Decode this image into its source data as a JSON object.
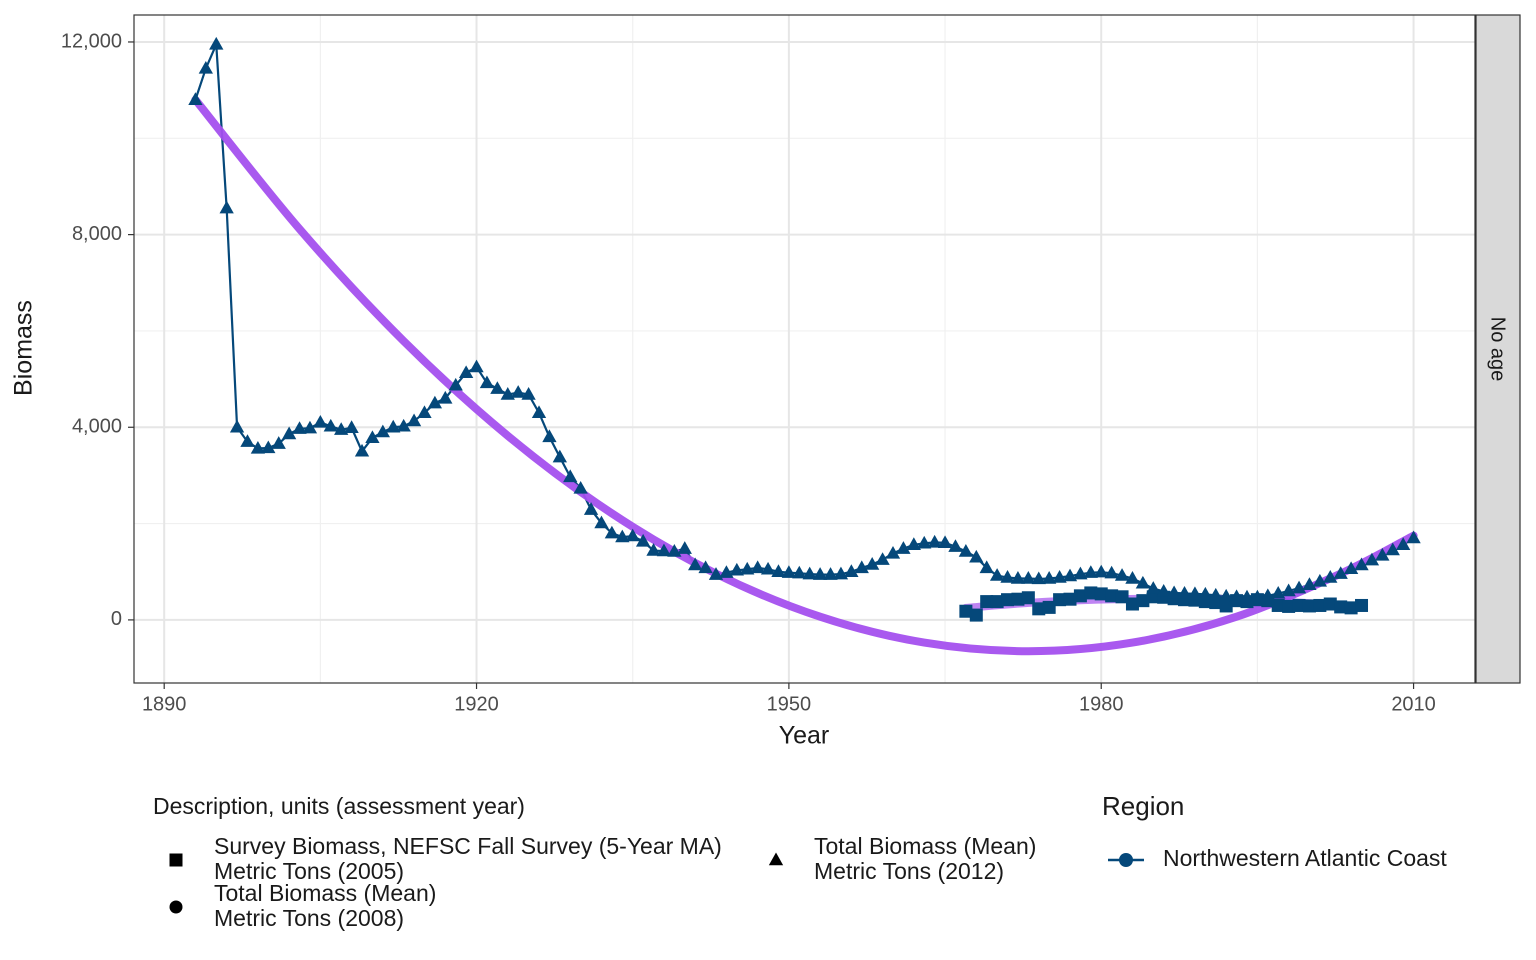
{
  "chart_data": {
    "type": "line",
    "x_label": "Year",
    "y_label": "Biomass",
    "facet": "No age",
    "xlim": [
      1887.1,
      2015.9
    ],
    "ylim": [
      -1310,
      12560
    ],
    "xticks": [
      1890,
      1920,
      1950,
      1980,
      2010
    ],
    "x_minor_grid": [
      1905,
      1935,
      1965,
      1995
    ],
    "yticks": [
      0,
      {
        "value": 4000,
        "label": "4,000"
      },
      {
        "value": 8000,
        "label": "8,000"
      },
      {
        "value": 12000,
        "label": "12,000"
      }
    ],
    "y_minor_grid": [
      2000,
      6000,
      10000
    ],
    "grid": true,
    "legend_title": "Description, units (assessment year)",
    "series": [
      {
        "name": [
          "Survey Biomass, NEFSC Fall Survey (5-Year MA)",
          "Metric Tons (2005)"
        ],
        "shape": "square",
        "color": "#05487a",
        "x": [
          1967,
          1968,
          1969,
          1970,
          1971,
          1972,
          1973,
          1974,
          1975,
          1976,
          1977,
          1978,
          1979,
          1980,
          1981,
          1982,
          1983,
          1984,
          1985,
          1986,
          1987,
          1988,
          1989,
          1990,
          1991,
          1992,
          1993,
          1994,
          1995,
          1996,
          1997,
          1998,
          1999,
          2000,
          2001,
          2002,
          2003,
          2004,
          2005
        ],
        "values": [
          180,
          100,
          380,
          380,
          420,
          430,
          460,
          230,
          260,
          420,
          430,
          500,
          560,
          540,
          500,
          480,
          330,
          400,
          480,
          470,
          440,
          420,
          410,
          380,
          360,
          290,
          400,
          380,
          420,
          400,
          300,
          280,
          300,
          290,
          300,
          330,
          270,
          250,
          300
        ]
      },
      {
        "name": [
          "Total Biomass (Mean)",
          "Metric Tons (2008)"
        ],
        "shape": "circle",
        "color": "#05487a",
        "x": [],
        "values": []
      },
      {
        "name": [
          "Total Biomass (Mean)",
          "Metric Tons (2012)"
        ],
        "shape": "triangle",
        "color": "#05487a",
        "x": [
          1893,
          1894,
          1895,
          1896,
          1897,
          1898,
          1899,
          1900,
          1901,
          1902,
          1903,
          1904,
          1905,
          1906,
          1907,
          1908,
          1909,
          1910,
          1911,
          1912,
          1913,
          1914,
          1915,
          1916,
          1917,
          1918,
          1919,
          1920,
          1921,
          1922,
          1923,
          1924,
          1925,
          1926,
          1927,
          1928,
          1929,
          1930,
          1931,
          1932,
          1933,
          1934,
          1935,
          1936,
          1937,
          1938,
          1939,
          1940,
          1941,
          1942,
          1943,
          1944,
          1945,
          1946,
          1947,
          1948,
          1949,
          1950,
          1951,
          1952,
          1953,
          1954,
          1955,
          1956,
          1957,
          1958,
          1959,
          1960,
          1961,
          1962,
          1963,
          1964,
          1965,
          1966,
          1967,
          1968,
          1969,
          1970,
          1971,
          1972,
          1973,
          1974,
          1975,
          1976,
          1977,
          1978,
          1979,
          1980,
          1981,
          1982,
          1983,
          1984,
          1985,
          1986,
          1987,
          1988,
          1989,
          1990,
          1991,
          1992,
          1993,
          1994,
          1995,
          1996,
          1997,
          1998,
          1999,
          2000,
          2001,
          2002,
          2003,
          2004,
          2005,
          2006,
          2007,
          2008,
          2009,
          2010
        ],
        "values": [
          10800,
          11450,
          11950,
          8550,
          4000,
          3700,
          3560,
          3570,
          3660,
          3860,
          3970,
          3980,
          4100,
          4020,
          3950,
          3990,
          3500,
          3780,
          3900,
          4000,
          4020,
          4130,
          4300,
          4500,
          4600,
          4870,
          5130,
          5250,
          4920,
          4800,
          4680,
          4720,
          4680,
          4300,
          3800,
          3380,
          2970,
          2730,
          2290,
          2010,
          1800,
          1720,
          1740,
          1630,
          1440,
          1430,
          1420,
          1480,
          1140,
          1080,
          940,
          980,
          1030,
          1050,
          1080,
          1050,
          1000,
          980,
          970,
          950,
          940,
          940,
          950,
          1000,
          1080,
          1150,
          1250,
          1380,
          1480,
          1560,
          1590,
          1610,
          1600,
          1520,
          1420,
          1300,
          1080,
          920,
          880,
          860,
          860,
          850,
          860,
          880,
          910,
          950,
          980,
          990,
          970,
          920,
          860,
          760,
          650,
          590,
          560,
          550,
          540,
          530,
          510,
          490,
          480,
          470,
          470,
          500,
          550,
          600,
          660,
          730,
          800,
          880,
          960,
          1060,
          1140,
          1240,
          1340,
          1450,
          1560,
          1700
        ]
      }
    ],
    "trend_color": "#a450ee",
    "trends": [
      {
        "x": [
          1893,
          1903,
          1913,
          1923,
          1933,
          1943,
          1953,
          1963,
          1973,
          1983,
          1993,
          2003,
          2010
        ],
        "values": [
          10800,
          8116,
          5790,
          3823,
          2212,
          960,
          66,
          -471,
          -650,
          -471,
          66,
          960,
          1750
        ]
      },
      {
        "x": [
          1967,
          1975,
          1985,
          1995,
          2005
        ],
        "values": [
          250,
          380,
          440,
          400,
          280
        ]
      }
    ],
    "region_title": "Region",
    "region": "Northwestern Atlantic Coast"
  }
}
